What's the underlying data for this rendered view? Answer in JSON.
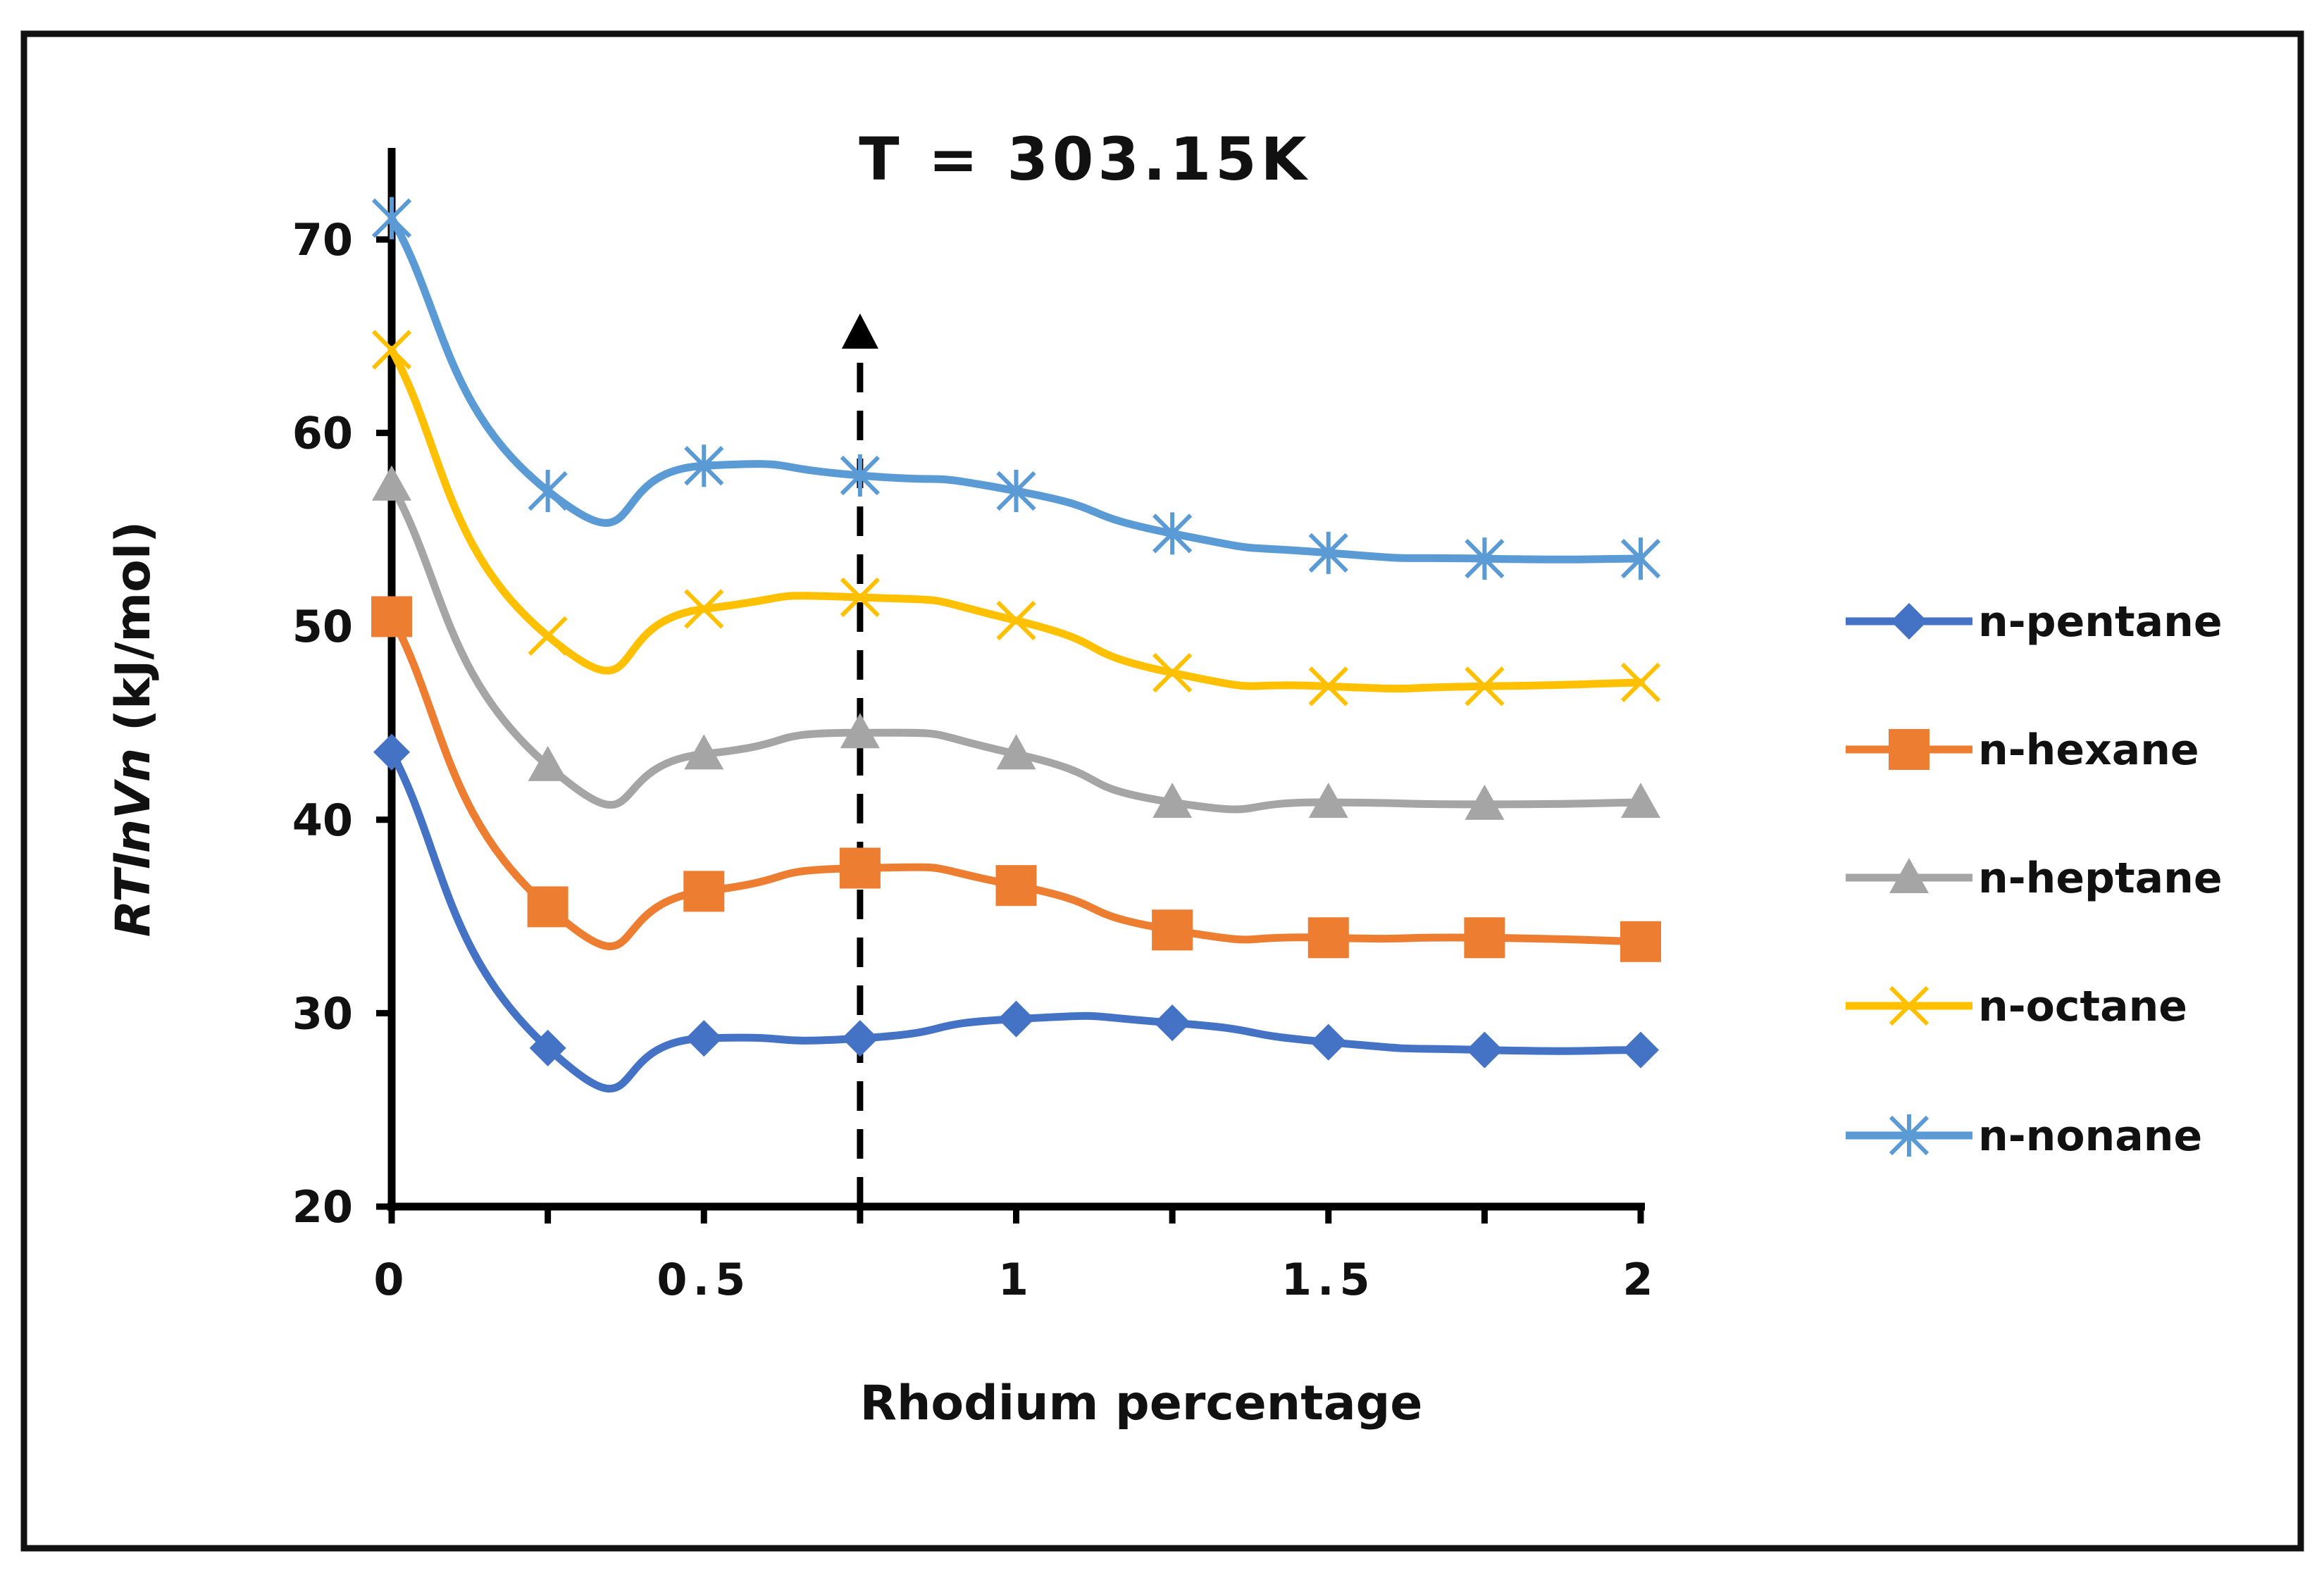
{
  "chart_data": {
    "type": "line",
    "title": "T = 303.15K",
    "xlabel": "Rhodium percentage",
    "ylabel_italic": "RTlnVn",
    "ylabel_unit": " (kJ/mol)",
    "x": [
      0,
      0.25,
      0.5,
      0.75,
      1,
      1.25,
      1.5,
      1.75,
      2
    ],
    "xlim": [
      0,
      2
    ],
    "ylim": [
      20,
      70
    ],
    "x_ticks": [
      0,
      0.5,
      1,
      1.5,
      2
    ],
    "x_tick_labels": [
      "0",
      "0.5",
      "1",
      "1.5",
      "2"
    ],
    "y_ticks": [
      20,
      30,
      40,
      50,
      60,
      70
    ],
    "y_tick_labels": [
      "20",
      "30",
      "40",
      "50",
      "60",
      "70"
    ],
    "grid": false,
    "legend_position": "right",
    "annotation": {
      "type": "dashed-arrow",
      "x": 0.75
    },
    "series": [
      {
        "name": "n-pentane",
        "color": "#4472C4",
        "marker": "diamond",
        "values": [
          43.5,
          28.2,
          28.7,
          28.7,
          29.7,
          29.5,
          28.5,
          28.1,
          28.1
        ]
      },
      {
        "name": "n-hexane",
        "color": "#ED7D31",
        "marker": "square",
        "values": [
          50.5,
          35.5,
          36.3,
          37.5,
          36.6,
          34.3,
          33.9,
          33.9,
          33.7
        ]
      },
      {
        "name": "n-heptane",
        "color": "#A5A5A5",
        "marker": "triangle",
        "values": [
          57.3,
          42.8,
          43.4,
          44.5,
          43.4,
          40.9,
          40.9,
          40.8,
          40.9
        ]
      },
      {
        "name": "n-octane",
        "color": "#FFC000",
        "marker": "x",
        "values": [
          64.3,
          49.5,
          50.9,
          51.5,
          50.3,
          47.6,
          46.9,
          46.9,
          47.1
        ]
      },
      {
        "name": "n-nonane",
        "color": "#5B9BD5",
        "marker": "star",
        "values": [
          71.1,
          57.0,
          58.3,
          57.8,
          57.0,
          54.8,
          53.8,
          53.5,
          53.5
        ]
      }
    ]
  }
}
